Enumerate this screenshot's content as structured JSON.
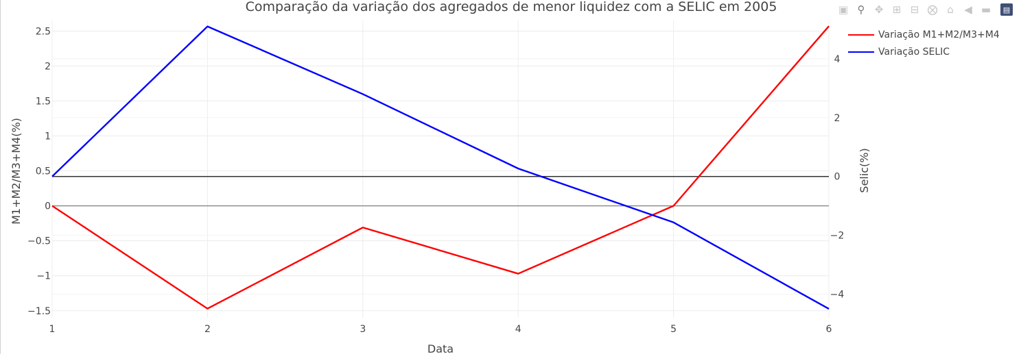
{
  "chart_data": {
    "type": "line",
    "title": "Comparação da variação dos agregados de menor liquidez com a SELIC em 2005",
    "xlabel": "Data",
    "ylabel": "M1+M2/M3+M4(%)",
    "y2label": "Selic(%)",
    "x": [
      1,
      2,
      3,
      4,
      5,
      6
    ],
    "xlim": [
      1,
      6
    ],
    "ylim": [
      -1.6,
      2.65
    ],
    "y2lim": [
      -4.8,
      5.3
    ],
    "xticks": [
      1,
      2,
      3,
      4,
      5,
      6
    ],
    "xtick_labels": [
      "1",
      "2",
      "3",
      "4",
      "5",
      "6"
    ],
    "yticks": [
      -1.5,
      -1,
      -0.5,
      0,
      0.5,
      1,
      1.5,
      2,
      2.5
    ],
    "ytick_labels": [
      "−1.5",
      "−1",
      "−0.5",
      "0",
      "0.5",
      "1",
      "1.5",
      "2",
      "2.5"
    ],
    "y2ticks": [
      -4,
      -2,
      0,
      2,
      4
    ],
    "y2tick_labels": [
      "−4",
      "−2",
      "0",
      "2",
      "4"
    ],
    "grid": true,
    "legend_position": "top-right",
    "series": [
      {
        "name": "Variação M1+M2/M3+M4",
        "axis": "y",
        "color": "#ff0000",
        "values": [
          0,
          -1.47,
          -0.31,
          -0.97,
          0,
          2.57
        ]
      },
      {
        "name": "Variação SELIC",
        "axis": "y2",
        "color": "#0000ff",
        "values": [
          0,
          5.1,
          2.8,
          0.27,
          -1.56,
          -4.5
        ]
      }
    ]
  },
  "modebar": {
    "icons": [
      "camera-icon",
      "zoom-icon",
      "pan-icon",
      "zoom-in-icon",
      "zoom-out-icon",
      "autoscale-icon",
      "reset-axes-icon",
      "spike-lines-icon",
      "compare-hover-icon",
      "plotly-logo-icon"
    ]
  }
}
